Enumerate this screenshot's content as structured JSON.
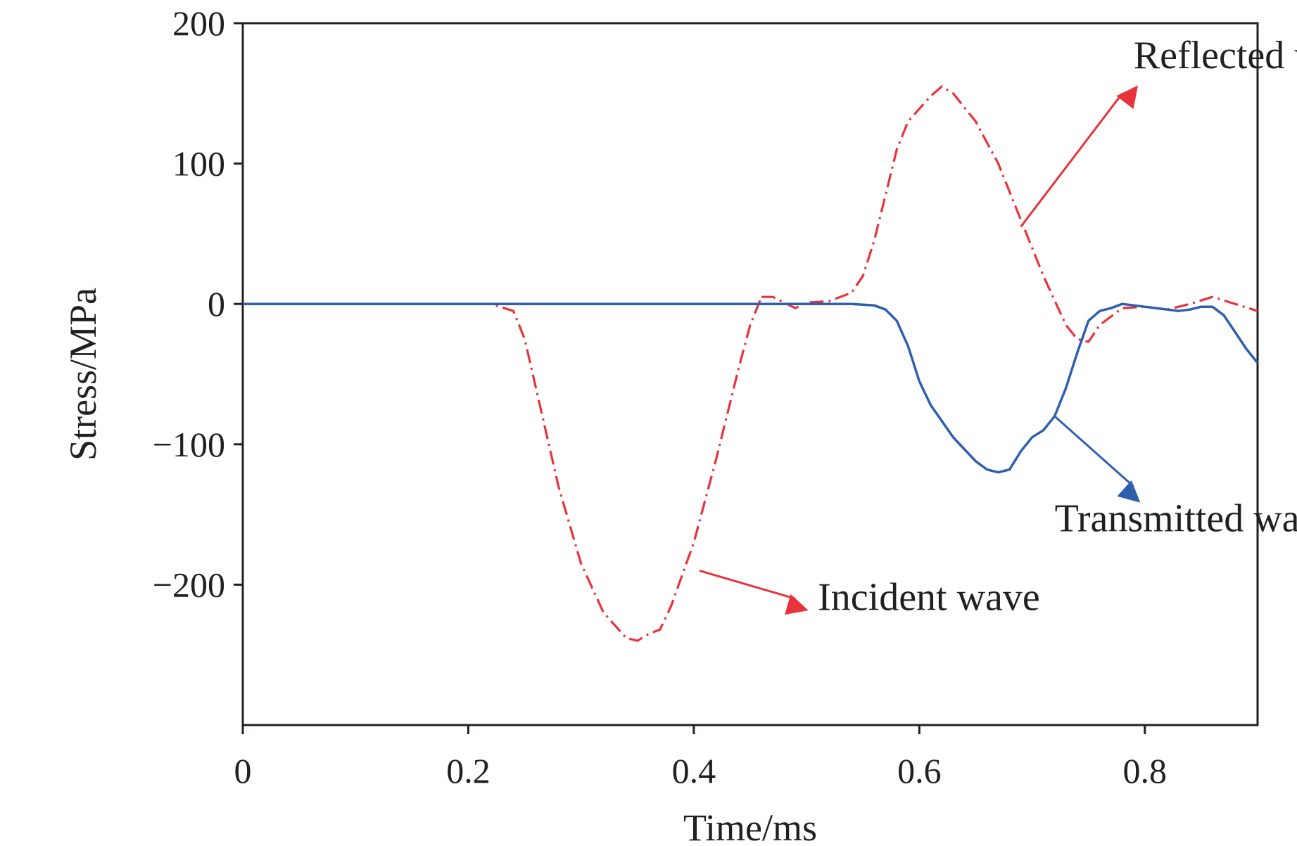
{
  "chart_data": {
    "type": "line",
    "title": "",
    "xlabel": "Time/ms",
    "ylabel": "Stress/MPa",
    "xlim": [
      0,
      0.9
    ],
    "ylim": [
      -300,
      200
    ],
    "xticks": [
      0,
      0.2,
      0.4,
      0.6,
      0.8
    ],
    "xtick_labels": [
      "0",
      "0.2",
      "0.4",
      "0.6",
      "0.8"
    ],
    "yticks": [
      200,
      100,
      0,
      -100,
      -200
    ],
    "ytick_labels": [
      "200",
      "100",
      "0",
      "−100",
      "−200"
    ],
    "grid": false,
    "series": [
      {
        "name": "Incident wave",
        "color": "#e8333a",
        "style": "dash-dot",
        "points": [
          [
            0,
            0
          ],
          [
            0.1,
            0
          ],
          [
            0.2,
            0
          ],
          [
            0.22,
            0
          ],
          [
            0.24,
            -5
          ],
          [
            0.25,
            -25
          ],
          [
            0.26,
            -60
          ],
          [
            0.28,
            -130
          ],
          [
            0.3,
            -185
          ],
          [
            0.32,
            -220
          ],
          [
            0.34,
            -238
          ],
          [
            0.35,
            -240
          ],
          [
            0.36,
            -235
          ],
          [
            0.37,
            -232
          ],
          [
            0.38,
            -215
          ],
          [
            0.4,
            -170
          ],
          [
            0.42,
            -110
          ],
          [
            0.44,
            -45
          ],
          [
            0.45,
            -15
          ],
          [
            0.46,
            5
          ]
        ]
      },
      {
        "name": "Reflected wave",
        "color": "#e8333a",
        "style": "dash-dot",
        "points": [
          [
            0.46,
            5
          ],
          [
            0.47,
            5
          ],
          [
            0.49,
            -3
          ],
          [
            0.5,
            1
          ],
          [
            0.52,
            2
          ],
          [
            0.54,
            8
          ],
          [
            0.55,
            20
          ],
          [
            0.56,
            45
          ],
          [
            0.58,
            110
          ],
          [
            0.59,
            130
          ],
          [
            0.61,
            148
          ],
          [
            0.62,
            155
          ],
          [
            0.63,
            150
          ],
          [
            0.65,
            130
          ],
          [
            0.67,
            100
          ],
          [
            0.69,
            60
          ],
          [
            0.71,
            20
          ],
          [
            0.73,
            -15
          ],
          [
            0.74,
            -25
          ],
          [
            0.75,
            -27
          ],
          [
            0.76,
            -15
          ],
          [
            0.78,
            -3
          ],
          [
            0.8,
            -2
          ],
          [
            0.82,
            -4
          ],
          [
            0.84,
            0
          ],
          [
            0.86,
            5
          ],
          [
            0.88,
            0
          ],
          [
            0.9,
            -5
          ]
        ]
      },
      {
        "name": "Transmitted wave",
        "color": "#2e5fae",
        "style": "solid",
        "points": [
          [
            0,
            0
          ],
          [
            0.1,
            0
          ],
          [
            0.2,
            0
          ],
          [
            0.3,
            0
          ],
          [
            0.4,
            0
          ],
          [
            0.5,
            0
          ],
          [
            0.54,
            0
          ],
          [
            0.56,
            -1
          ],
          [
            0.57,
            -4
          ],
          [
            0.58,
            -12
          ],
          [
            0.59,
            -30
          ],
          [
            0.6,
            -55
          ],
          [
            0.61,
            -72
          ],
          [
            0.63,
            -95
          ],
          [
            0.65,
            -112
          ],
          [
            0.66,
            -118
          ],
          [
            0.67,
            -120
          ],
          [
            0.68,
            -118
          ],
          [
            0.69,
            -105
          ],
          [
            0.7,
            -95
          ],
          [
            0.71,
            -90
          ],
          [
            0.72,
            -80
          ],
          [
            0.73,
            -60
          ],
          [
            0.74,
            -35
          ],
          [
            0.75,
            -12
          ],
          [
            0.76,
            -5
          ],
          [
            0.77,
            -3
          ],
          [
            0.78,
            0
          ],
          [
            0.79,
            -1
          ],
          [
            0.81,
            -3
          ],
          [
            0.83,
            -5
          ],
          [
            0.84,
            -4
          ],
          [
            0.85,
            -2
          ],
          [
            0.86,
            -2
          ],
          [
            0.87,
            -8
          ],
          [
            0.88,
            -20
          ],
          [
            0.89,
            -32
          ],
          [
            0.9,
            -42
          ]
        ]
      }
    ],
    "annotations": [
      {
        "text": "Reflected wave",
        "color": "#e8333a",
        "arrow_from": [
          0.69,
          55
        ],
        "arrow_to": [
          0.78,
          150
        ],
        "text_at": [
          0.79,
          168
        ]
      },
      {
        "text": "Transmitted wave",
        "color": "#2e5fae",
        "arrow_from": [
          0.72,
          -80
        ],
        "arrow_to": [
          0.79,
          -130
        ],
        "text_at": [
          0.72,
          -162
        ]
      },
      {
        "text": "Incident wave",
        "color": "#e8333a",
        "arrow_from": [
          0.405,
          -190
        ],
        "arrow_to": [
          0.49,
          -210
        ],
        "text_at": [
          0.51,
          -218
        ]
      }
    ]
  }
}
